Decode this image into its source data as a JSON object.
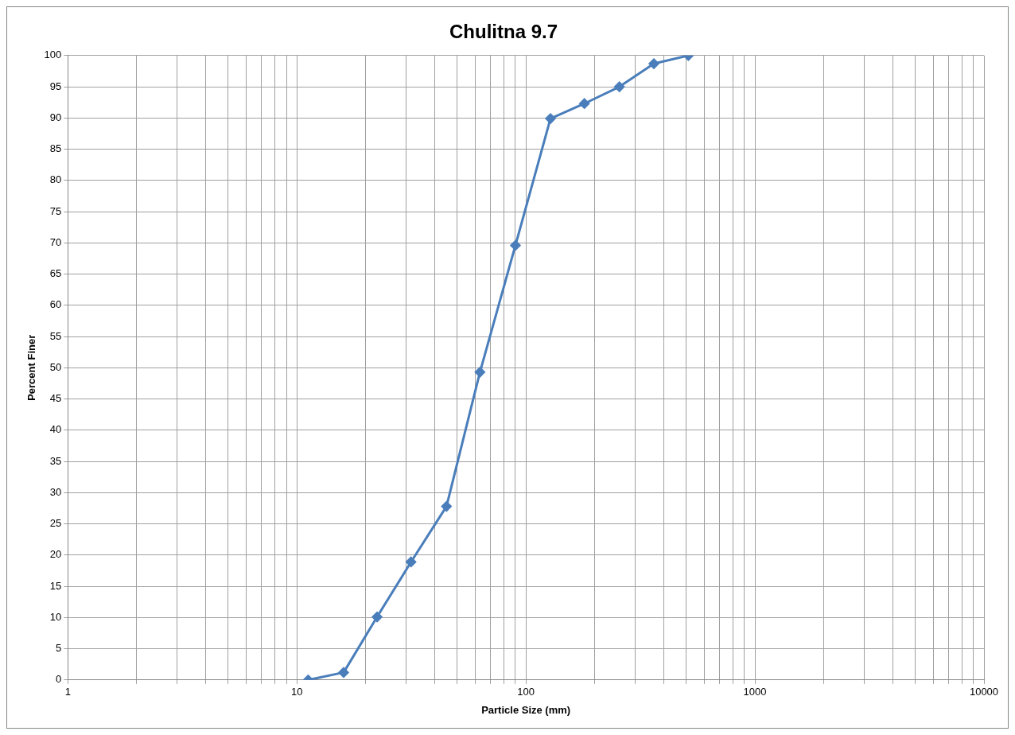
{
  "chart_data": {
    "type": "line",
    "title": "Chulitna 9.7",
    "xlabel": "Particle Size (mm)",
    "ylabel": "Percent Finer",
    "x": [
      11.2,
      16,
      22.4,
      31.5,
      45,
      63,
      90,
      128,
      180,
      256,
      362,
      512
    ],
    "series": [
      {
        "color": "#4a7ebb",
        "values": [
          0,
          1.2,
          10.1,
          18.9,
          27.8,
          49.3,
          69.6,
          89.9,
          92.3,
          95,
          98.7,
          100
        ]
      }
    ],
    "log": "x",
    "xlim": [
      1,
      10000
    ],
    "xticks": [
      1,
      {
        "value": 2,
        "label": null
      },
      {
        "value": 3,
        "label": null
      },
      {
        "value": 4,
        "label": null
      },
      {
        "value": 5,
        "label": null
      },
      {
        "value": 6,
        "label": null
      },
      {
        "value": 7,
        "label": null
      },
      {
        "value": 8,
        "label": null
      },
      {
        "value": 9,
        "label": null
      },
      10,
      {
        "value": 20,
        "label": null
      },
      {
        "value": 30,
        "label": null
      },
      {
        "value": 40,
        "label": null
      },
      {
        "value": 50,
        "label": null
      },
      {
        "value": 60,
        "label": null
      },
      {
        "value": 70,
        "label": null
      },
      {
        "value": 80,
        "label": null
      },
      {
        "value": 90,
        "label": null
      },
      100,
      {
        "value": 200,
        "label": null
      },
      {
        "value": 300,
        "label": null
      },
      {
        "value": 400,
        "label": null
      },
      {
        "value": 500,
        "label": null
      },
      {
        "value": 600,
        "label": null
      },
      {
        "value": 700,
        "label": null
      },
      {
        "value": 800,
        "label": null
      },
      {
        "value": 900,
        "label": null
      },
      1000,
      {
        "value": 2000,
        "label": null
      },
      {
        "value": 3000,
        "label": null
      },
      {
        "value": 4000,
        "label": null
      },
      {
        "value": 5000,
        "label": null
      },
      {
        "value": 6000,
        "label": null
      },
      {
        "value": 7000,
        "label": null
      },
      {
        "value": 8000,
        "label": null
      },
      {
        "value": 9000,
        "label": null
      },
      10000
    ],
    "ylim": [
      0,
      100
    ],
    "yticks": [
      0,
      5,
      10,
      15,
      20,
      25,
      30,
      35,
      40,
      45,
      50,
      55,
      60,
      65,
      70,
      75,
      80,
      85,
      90,
      95,
      100
    ],
    "grid": true,
    "legend": false,
    "marker": "diamond",
    "line_style": "solid"
  }
}
